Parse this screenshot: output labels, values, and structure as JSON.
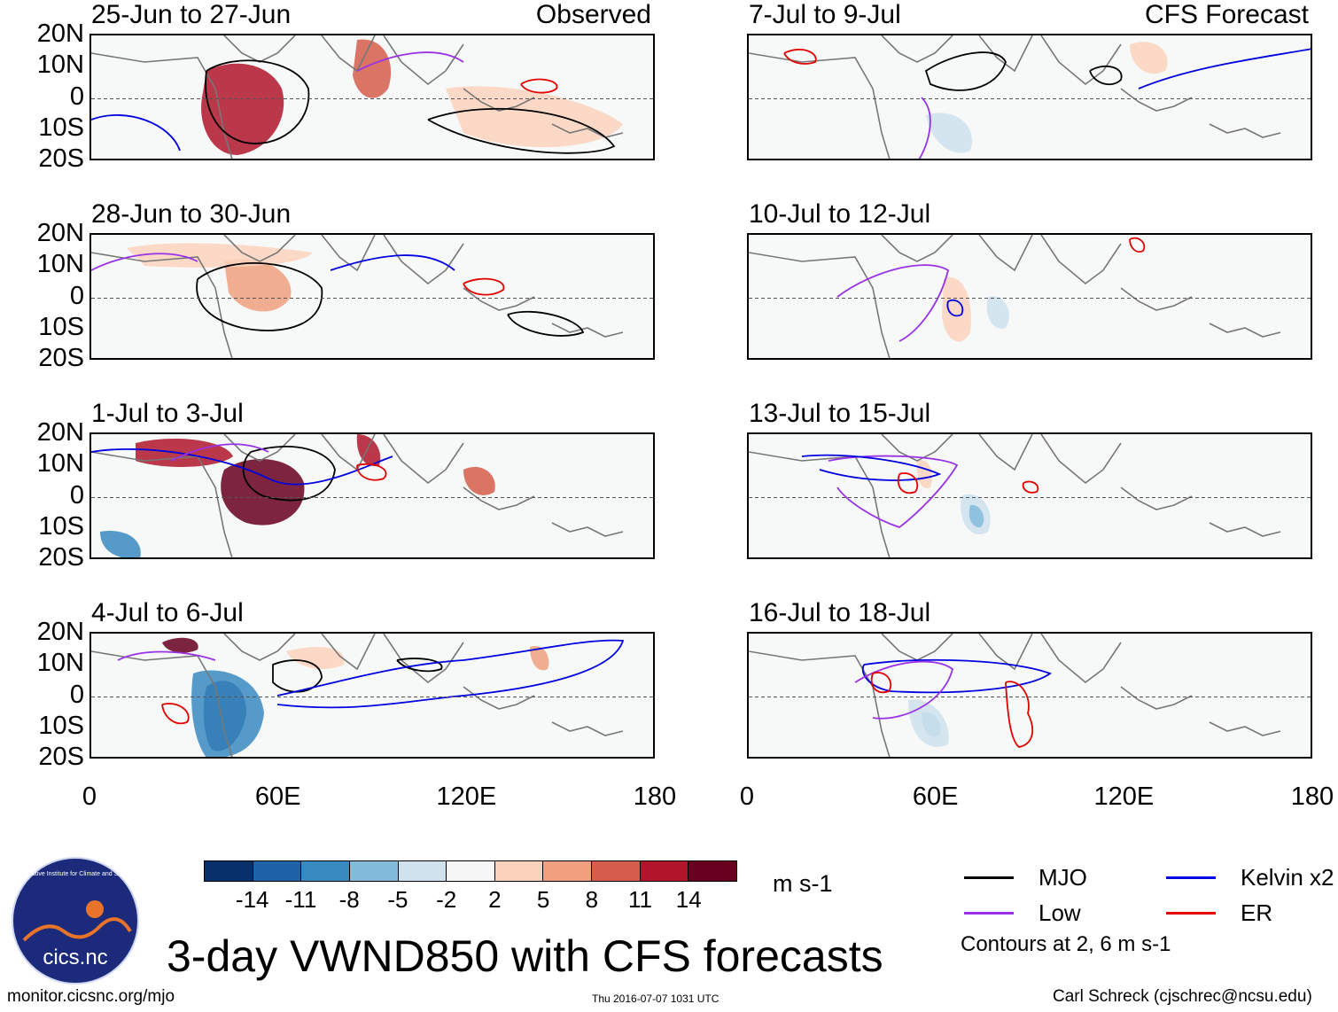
{
  "panels": [
    {
      "title": "25-Jun to 27-Jun",
      "tag": "Observed"
    },
    {
      "title": "7-Jul to 9-Jul",
      "tag": "CFS Forecast"
    },
    {
      "title": "28-Jun to 30-Jun",
      "tag": ""
    },
    {
      "title": "10-Jul to 12-Jul",
      "tag": ""
    },
    {
      "title": "1-Jul to 3-Jul",
      "tag": ""
    },
    {
      "title": "13-Jul to 15-Jul",
      "tag": ""
    },
    {
      "title": "4-Jul to 6-Jul",
      "tag": ""
    },
    {
      "title": "16-Jul to 18-Jul",
      "tag": ""
    }
  ],
  "lat_labels": [
    "20N",
    "10N",
    "0",
    "10S",
    "20S"
  ],
  "lon_labels": [
    "0",
    "60E",
    "120E",
    "180"
  ],
  "colorbar": {
    "colors": [
      "#08306b",
      "#1f62a8",
      "#3a8ac2",
      "#83bcda",
      "#cfe2ee",
      "#f7f7f7",
      "#fbd3bd",
      "#f0a07e",
      "#d55d4b",
      "#b0152b",
      "#67001f"
    ],
    "labels": [
      "-14",
      "-11",
      "-8",
      "-5",
      "-2",
      "2",
      "5",
      "8",
      "11",
      "14"
    ],
    "units": "m s-1"
  },
  "legend": {
    "items": [
      {
        "label": "MJO",
        "color": "#000000"
      },
      {
        "label": "Kelvin x2",
        "color": "#0000e0"
      },
      {
        "label": "Low",
        "color": "#9932e6"
      },
      {
        "label": "ER",
        "color": "#e00000"
      }
    ],
    "note": "Contours at 2, 6 m s-1"
  },
  "main_title": "3-day VWND850 with CFS forecasts",
  "footer": {
    "url": "monitor.cicsnc.org/mjo",
    "timestamp": "Thu 2016-07-07 1031 UTC",
    "credit": "Carl Schreck (cjschrec@ncsu.edu)"
  },
  "logo": {
    "text": "cics.nc",
    "ring_text": "Cooperative Institute for Climate and Satellites"
  }
}
